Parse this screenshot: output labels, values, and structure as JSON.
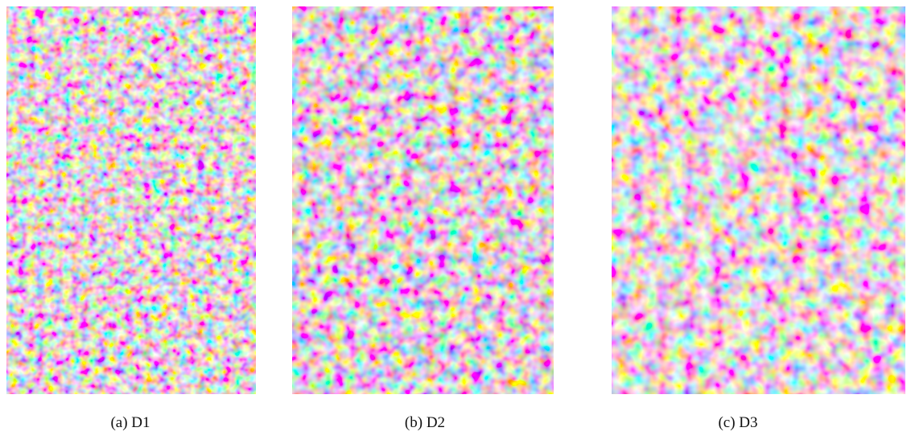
{
  "figure": {
    "panels": [
      {
        "caption": "(a) D1"
      },
      {
        "caption": "(b) D2"
      },
      {
        "caption": "(c) D3"
      }
    ]
  }
}
